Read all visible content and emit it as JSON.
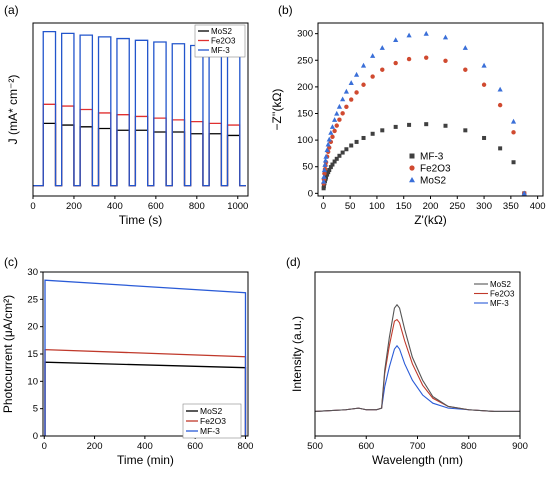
{
  "chart_data": [
    {
      "panel": "(a)",
      "type": "line",
      "xlabel": "Time (s)",
      "ylabel": "J (mA* cm⁻²)",
      "xlim": [
        0,
        1050
      ],
      "ylim": [
        0,
        1
      ],
      "xticks": [
        0,
        200,
        400,
        600,
        800,
        1000
      ],
      "legend": "top-right",
      "cycles": [
        [
          50,
          110
        ],
        [
          140,
          200
        ],
        [
          230,
          290
        ],
        [
          320,
          380
        ],
        [
          410,
          470
        ],
        [
          500,
          560
        ],
        [
          590,
          650
        ],
        [
          680,
          740
        ],
        [
          770,
          830
        ],
        [
          860,
          920
        ],
        [
          950,
          1010
        ]
      ],
      "series": [
        {
          "name": "MoS2",
          "color": "#000000",
          "on": [
            0.42,
            0.41,
            0.4,
            0.39,
            0.38,
            0.38,
            0.37,
            0.37,
            0.36,
            0.36,
            0.35
          ]
        },
        {
          "name": "Fe2O3",
          "color": "#e03030",
          "on": [
            0.53,
            0.52,
            0.5,
            0.48,
            0.47,
            0.46,
            0.45,
            0.44,
            0.43,
            0.42,
            0.41
          ]
        },
        {
          "name": "MF-3",
          "color": "#2255cc",
          "on": [
            0.95,
            0.94,
            0.93,
            0.92,
            0.91,
            0.9,
            0.89,
            0.88,
            0.87,
            0.86,
            0.85
          ]
        }
      ]
    },
    {
      "panel": "(b)",
      "type": "scatter",
      "xlabel": "Z'(kΩ)",
      "ylabel": "−Z''(kΩ)",
      "xlim": [
        -10,
        410
      ],
      "ylim": [
        -5,
        320
      ],
      "xticks": [
        0,
        50,
        100,
        150,
        200,
        250,
        300,
        350,
        400
      ],
      "yticks": [
        0,
        50,
        100,
        150,
        200,
        250,
        300
      ],
      "legend": "bottom-center",
      "series": [
        {
          "name": "MF-3",
          "color": "#404040",
          "marker": "square",
          "R": 375,
          "peak": 130
        },
        {
          "name": "Fe2O3",
          "color": "#d04a30",
          "marker": "circle",
          "R": 375,
          "peak": 255
        },
        {
          "name": "MoS2",
          "color": "#3a6fd8",
          "marker": "triangle",
          "R": 375,
          "peak": 300
        }
      ],
      "x": [
        0.5,
        1,
        2,
        3,
        4,
        5,
        7,
        9,
        11,
        14,
        17,
        21,
        25,
        30,
        36,
        43,
        52,
        62,
        75,
        92,
        110,
        135,
        160,
        192,
        228,
        265,
        300,
        330,
        355,
        375
      ]
    },
    {
      "panel": "(c)",
      "type": "line",
      "xlabel": "Time (min)",
      "ylabel": "Photocurrent (μA/cm²)",
      "xlim": [
        -5,
        810
      ],
      "ylim": [
        0,
        30
      ],
      "xticks": [
        0,
        200,
        400,
        600,
        800
      ],
      "yticks": [
        0,
        5,
        10,
        15,
        20,
        25,
        30
      ],
      "legend": "bottom-right",
      "x": [
        3,
        800
      ],
      "series": [
        {
          "name": "MoS2",
          "color": "#000000",
          "values": [
            13.5,
            12.5
          ]
        },
        {
          "name": "Fe2O3",
          "color": "#c0392b",
          "values": [
            15.8,
            14.5
          ]
        },
        {
          "name": "MF-3",
          "color": "#2a5bd7",
          "values": [
            28.5,
            26.2
          ]
        }
      ]
    },
    {
      "panel": "(d)",
      "type": "line",
      "xlabel": "Wavelength (nm)",
      "ylabel": "Intensity (a.u.)",
      "xlim": [
        500,
        900
      ],
      "ylim": [
        0,
        1
      ],
      "xticks": [
        500,
        600,
        700,
        800,
        900
      ],
      "legend": "top-right",
      "x": [
        500,
        560,
        585,
        600,
        620,
        630,
        636,
        645,
        655,
        660,
        665,
        675,
        690,
        710,
        730,
        760,
        800,
        850,
        900
      ],
      "series": [
        {
          "name": "MoS2",
          "color": "#555555",
          "values": [
            0.15,
            0.16,
            0.17,
            0.16,
            0.16,
            0.17,
            0.4,
            0.6,
            0.78,
            0.8,
            0.78,
            0.65,
            0.48,
            0.34,
            0.24,
            0.18,
            0.16,
            0.15,
            0.15
          ]
        },
        {
          "name": "Fe2O3",
          "color": "#c0392b",
          "values": [
            0.15,
            0.16,
            0.17,
            0.16,
            0.16,
            0.17,
            0.38,
            0.55,
            0.7,
            0.71,
            0.69,
            0.58,
            0.44,
            0.31,
            0.23,
            0.18,
            0.16,
            0.15,
            0.15
          ]
        },
        {
          "name": "MF-3",
          "color": "#2a5bd7",
          "values": [
            0.15,
            0.16,
            0.17,
            0.16,
            0.16,
            0.17,
            0.3,
            0.42,
            0.53,
            0.55,
            0.53,
            0.44,
            0.34,
            0.25,
            0.2,
            0.17,
            0.16,
            0.15,
            0.15
          ]
        }
      ]
    }
  ]
}
